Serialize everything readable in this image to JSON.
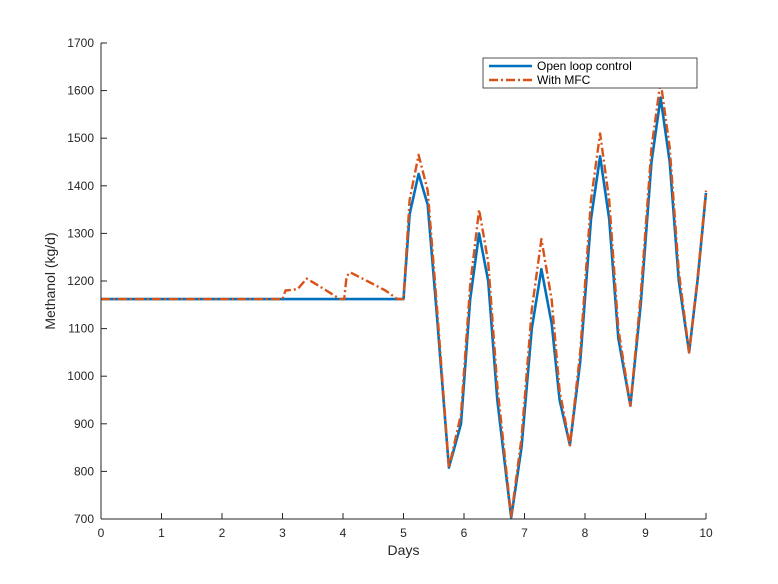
{
  "chart_data": {
    "type": "line",
    "title": "",
    "xlabel": "Days",
    "ylabel": "Methanol (kg/d)",
    "xlim": [
      0,
      10
    ],
    "ylim": [
      700,
      1700
    ],
    "xticks": [
      0,
      1,
      2,
      3,
      4,
      5,
      6,
      7,
      8,
      9,
      10
    ],
    "yticks": [
      700,
      800,
      900,
      1000,
      1100,
      1200,
      1300,
      1400,
      1500,
      1600,
      1700
    ],
    "grid": false,
    "legend_position": "top-right",
    "series": [
      {
        "name": "Open loop control",
        "color": "#0072BD",
        "style": "solid",
        "points": [
          [
            0,
            1162
          ],
          [
            3.0,
            1162
          ],
          [
            4.0,
            1162
          ],
          [
            5.0,
            1162
          ],
          [
            5.1,
            1340
          ],
          [
            5.25,
            1425
          ],
          [
            5.4,
            1360
          ],
          [
            5.55,
            1130
          ],
          [
            5.75,
            808
          ],
          [
            5.95,
            900
          ],
          [
            6.1,
            1160
          ],
          [
            6.25,
            1300
          ],
          [
            6.4,
            1200
          ],
          [
            6.55,
            950
          ],
          [
            6.78,
            703
          ],
          [
            6.95,
            850
          ],
          [
            7.12,
            1100
          ],
          [
            7.28,
            1225
          ],
          [
            7.45,
            1110
          ],
          [
            7.58,
            950
          ],
          [
            7.75,
            855
          ],
          [
            7.92,
            1030
          ],
          [
            8.1,
            1330
          ],
          [
            8.25,
            1462
          ],
          [
            8.4,
            1330
          ],
          [
            8.55,
            1080
          ],
          [
            8.75,
            938
          ],
          [
            8.92,
            1150
          ],
          [
            9.1,
            1450
          ],
          [
            9.25,
            1585
          ],
          [
            9.4,
            1450
          ],
          [
            9.55,
            1200
          ],
          [
            9.72,
            1050
          ],
          [
            9.86,
            1200
          ],
          [
            10.0,
            1385
          ]
        ]
      },
      {
        "name": "With MFC",
        "color": "#D95319",
        "style": "dash-dot",
        "points": [
          [
            0,
            1162
          ],
          [
            3.0,
            1162
          ],
          [
            3.05,
            1180
          ],
          [
            3.25,
            1183
          ],
          [
            3.4,
            1205
          ],
          [
            3.6,
            1190
          ],
          [
            3.95,
            1162
          ],
          [
            4.02,
            1162
          ],
          [
            4.06,
            1210
          ],
          [
            4.12,
            1218
          ],
          [
            4.4,
            1200
          ],
          [
            4.7,
            1180
          ],
          [
            4.9,
            1162
          ],
          [
            5.0,
            1162
          ],
          [
            5.1,
            1370
          ],
          [
            5.25,
            1465
          ],
          [
            5.4,
            1390
          ],
          [
            5.55,
            1150
          ],
          [
            5.75,
            808
          ],
          [
            5.95,
            920
          ],
          [
            6.1,
            1190
          ],
          [
            6.25,
            1350
          ],
          [
            6.4,
            1240
          ],
          [
            6.55,
            980
          ],
          [
            6.78,
            705
          ],
          [
            6.95,
            870
          ],
          [
            7.12,
            1140
          ],
          [
            7.28,
            1288
          ],
          [
            7.45,
            1160
          ],
          [
            7.58,
            970
          ],
          [
            7.75,
            855
          ],
          [
            7.92,
            1050
          ],
          [
            8.1,
            1370
          ],
          [
            8.25,
            1510
          ],
          [
            8.4,
            1370
          ],
          [
            8.55,
            1100
          ],
          [
            8.75,
            938
          ],
          [
            8.92,
            1170
          ],
          [
            9.1,
            1480
          ],
          [
            9.25,
            1620
          ],
          [
            9.4,
            1480
          ],
          [
            9.55,
            1220
          ],
          [
            9.72,
            1050
          ],
          [
            9.86,
            1205
          ],
          [
            10.0,
            1390
          ]
        ]
      }
    ]
  }
}
